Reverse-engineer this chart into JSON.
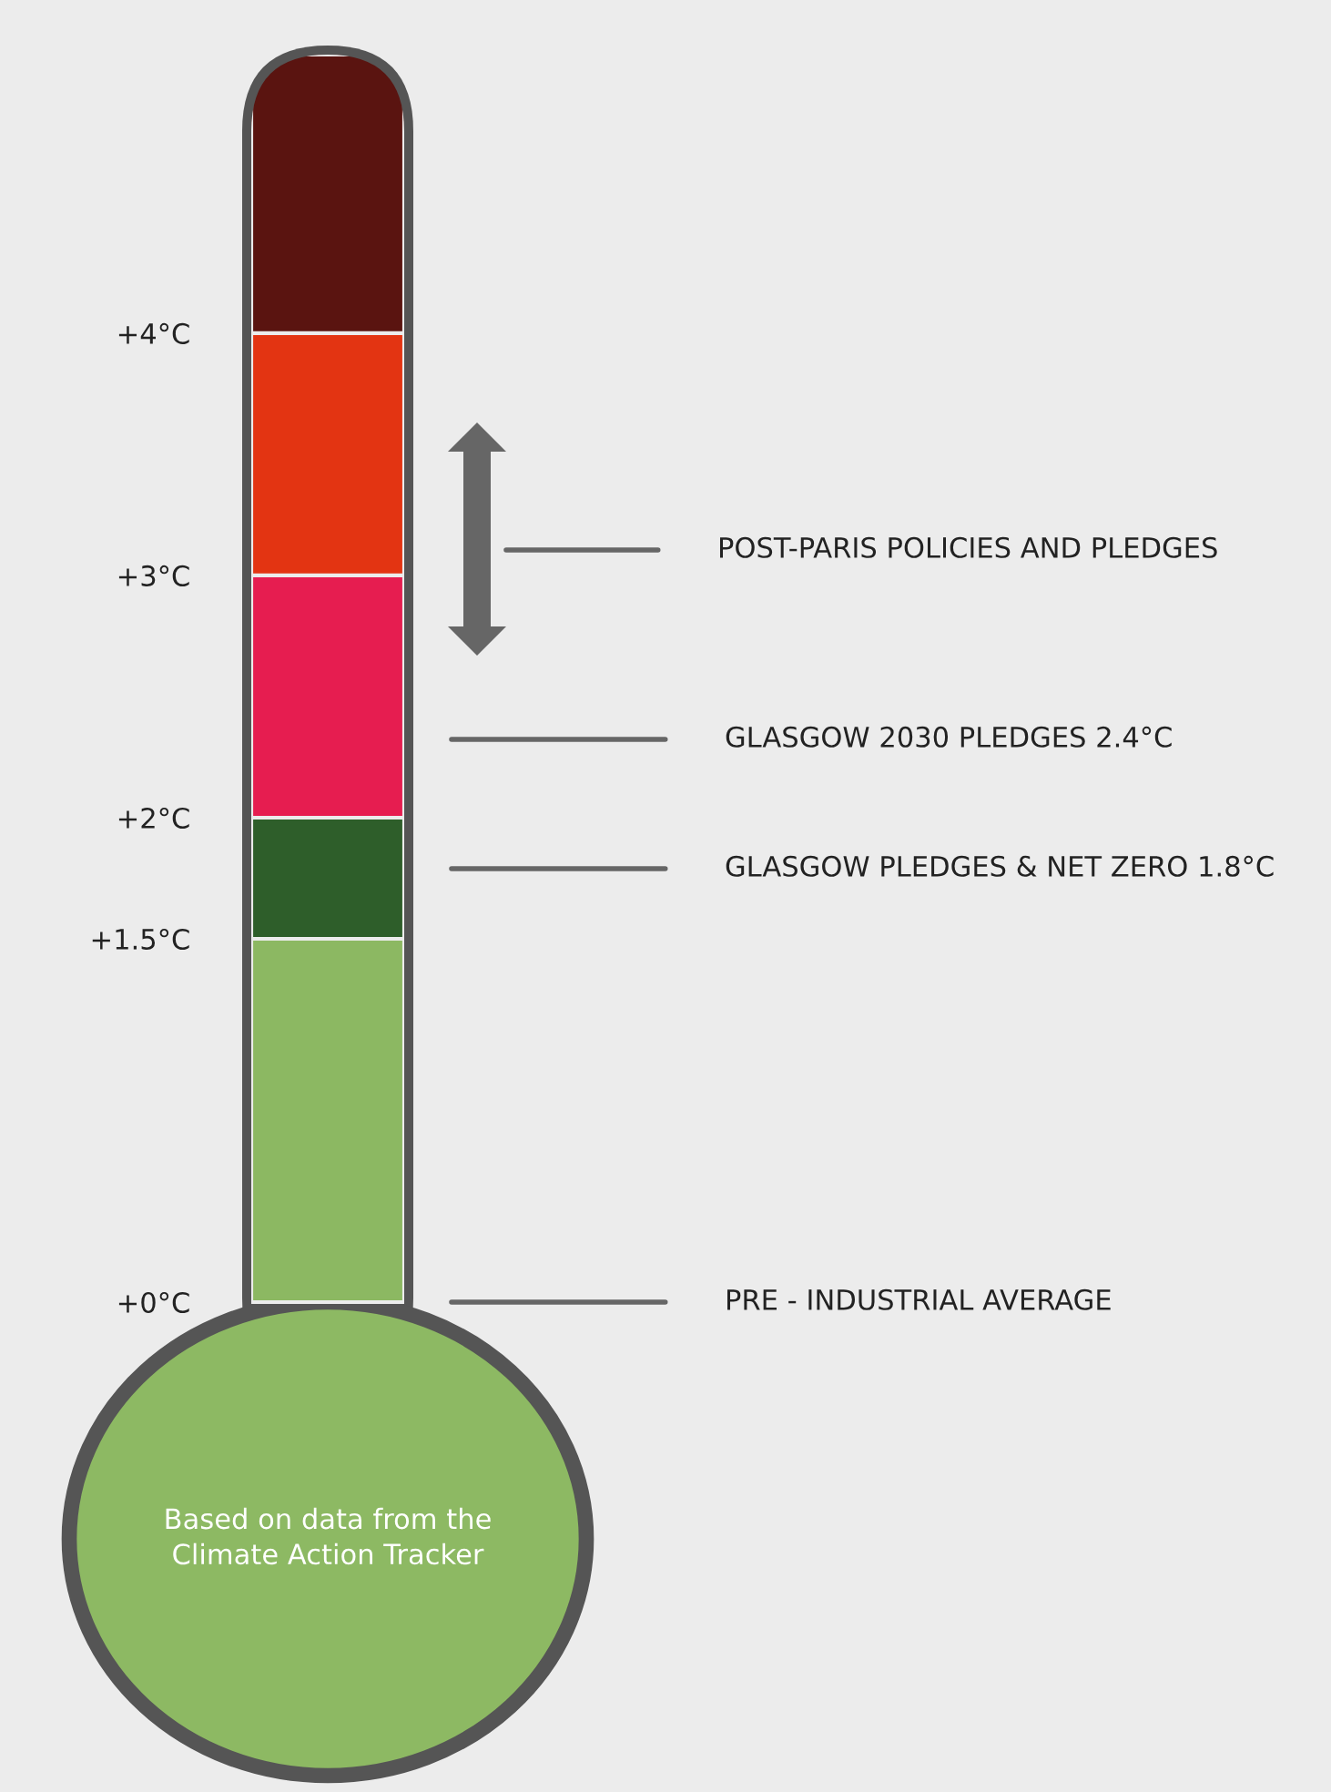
{
  "chart_data": {
    "type": "bar",
    "stacked": true,
    "categories": [
      null
    ],
    "series": [
      {
        "color": "#8cb862",
        "values": [
          1.5
        ]
      },
      {
        "color": "#2e5e2a",
        "values": [
          0.5
        ]
      },
      {
        "color": "#e61d50",
        "values": [
          1.0
        ]
      },
      {
        "color": "#e33412",
        "values": [
          1.0
        ]
      },
      {
        "color": "#5a1410",
        "values": [
          1.15
        ]
      }
    ],
    "ylim": [
      0,
      5.15
    ],
    "yticks": [
      {
        "value": 0,
        "label": "+0°C"
      },
      {
        "value": 1.5,
        "label": "+1.5°C"
      },
      {
        "value": 2,
        "label": "+2°C"
      },
      {
        "value": 3,
        "label": "+3°C"
      },
      {
        "value": 4,
        "label": "+4°C"
      }
    ],
    "annotations": [
      "POST-PARIS POLICIES AND PLEDGES",
      "GLASGOW 2030 PLEDGES 2.4°C",
      "GLASGOW PLEDGES & NET ZERO 1.8°C",
      "PRE - INDUSTRIAL AVERAGE",
      "Based on data from the\nClimate Action Tracker"
    ],
    "grid": false,
    "legend": false
  }
}
